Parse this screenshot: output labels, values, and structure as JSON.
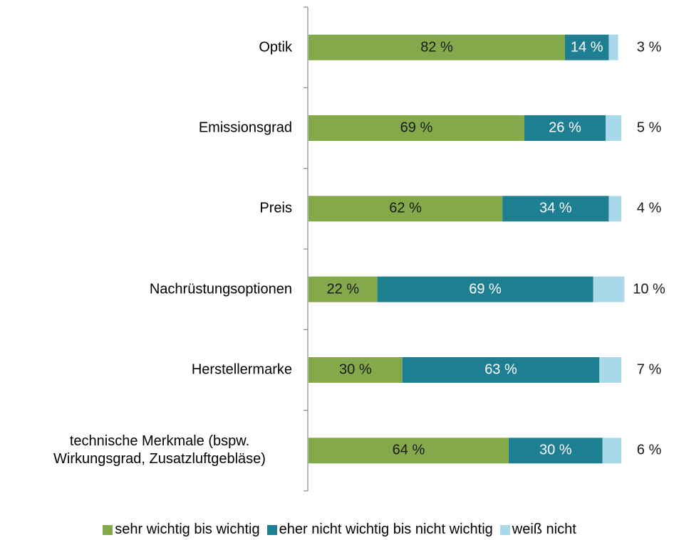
{
  "chart_data": {
    "type": "stacked-bar-horizontal",
    "categories": [
      "Optik",
      "Emissionsgrad",
      "Preis",
      "Nachrüstungsoptionen",
      "Herstellermarke",
      "technische Merkmale (bspw. Wirkungsgrad, Zusatzluftgebläse)"
    ],
    "series": [
      {
        "name": "sehr wichtig bis wichtig",
        "color": "#84a94a",
        "values": [
          82,
          69,
          62,
          22,
          30,
          64
        ],
        "value_labels": [
          "82 %",
          "69 %",
          "62 %",
          "22 %",
          "30 %",
          "64 %"
        ]
      },
      {
        "name": "eher nicht wichtig bis nicht wichtig",
        "color": "#1f7f92",
        "values": [
          14,
          26,
          34,
          69,
          63,
          30
        ],
        "value_labels": [
          "14 %",
          "26 %",
          "34 %",
          "69 %",
          "63 %",
          "30 %"
        ]
      },
      {
        "name": "weiß nicht",
        "color": "#a9d8e8",
        "values": [
          3,
          5,
          4,
          10,
          7,
          6
        ],
        "value_labels": [
          "3 %",
          "5 %",
          "4 %",
          "10 %",
          "7 %",
          "6 %"
        ]
      }
    ],
    "xlim": [
      0,
      100
    ],
    "legend": "bottom"
  }
}
